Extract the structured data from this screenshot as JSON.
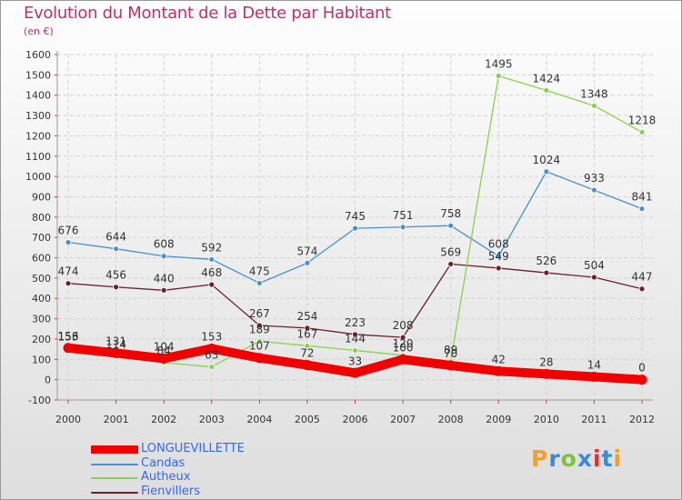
{
  "header": {
    "title": "Evolution du Montant de la Dette par Habitant",
    "unit": "(en €)"
  },
  "logo": {
    "letters": [
      "P",
      "r",
      "o",
      "x",
      "i",
      "t",
      "i"
    ],
    "colors": [
      "#f0a030",
      "#3a8ad6",
      "#7cc23c",
      "#3a8ad6",
      "#e03030",
      "#3a8ad6",
      "#f0a030"
    ]
  },
  "chart_data": {
    "type": "line",
    "title": "Evolution du Montant de la Dette par Habitant",
    "ylabel": "(en €)",
    "xlabel": "",
    "ylim": [
      -100,
      1600
    ],
    "yticks": [
      -100,
      0,
      100,
      200,
      300,
      400,
      500,
      600,
      700,
      800,
      900,
      1000,
      1100,
      1200,
      1300,
      1400,
      1500,
      1600
    ],
    "x": [
      "2000",
      "2001",
      "2002",
      "2003",
      "2004",
      "2005",
      "2006",
      "2007",
      "2008",
      "2009",
      "2010",
      "2011",
      "2012"
    ],
    "grid": true,
    "legend_position": "bottom-left",
    "series": [
      {
        "name": "Fienvillers",
        "color": "#6b1f2a",
        "values": [
          474,
          456,
          440,
          468,
          267,
          254,
          223,
          208,
          569,
          549,
          526,
          504,
          447
        ]
      },
      {
        "name": "Candas",
        "color": "#4a90d0",
        "values": [
          676,
          644,
          608,
          592,
          475,
          574,
          745,
          751,
          758,
          608,
          1024,
          933,
          841
        ]
      },
      {
        "name": "Autheux",
        "color": "#86d34f",
        "values": [
          153,
          114,
          84,
          63,
          189,
          167,
          144,
          120,
          89,
          1495,
          1424,
          1348,
          1218
        ]
      },
      {
        "name": "LONGUEVILLETTE",
        "color": "#f00000",
        "values": [
          156,
          131,
          104,
          153,
          107,
          72,
          33,
          100,
          70,
          42,
          28,
          14,
          0
        ]
      }
    ],
    "legend_order": [
      "LONGUEVILLETTE",
      "Candas",
      "Autheux",
      "Fienvillers"
    ]
  }
}
